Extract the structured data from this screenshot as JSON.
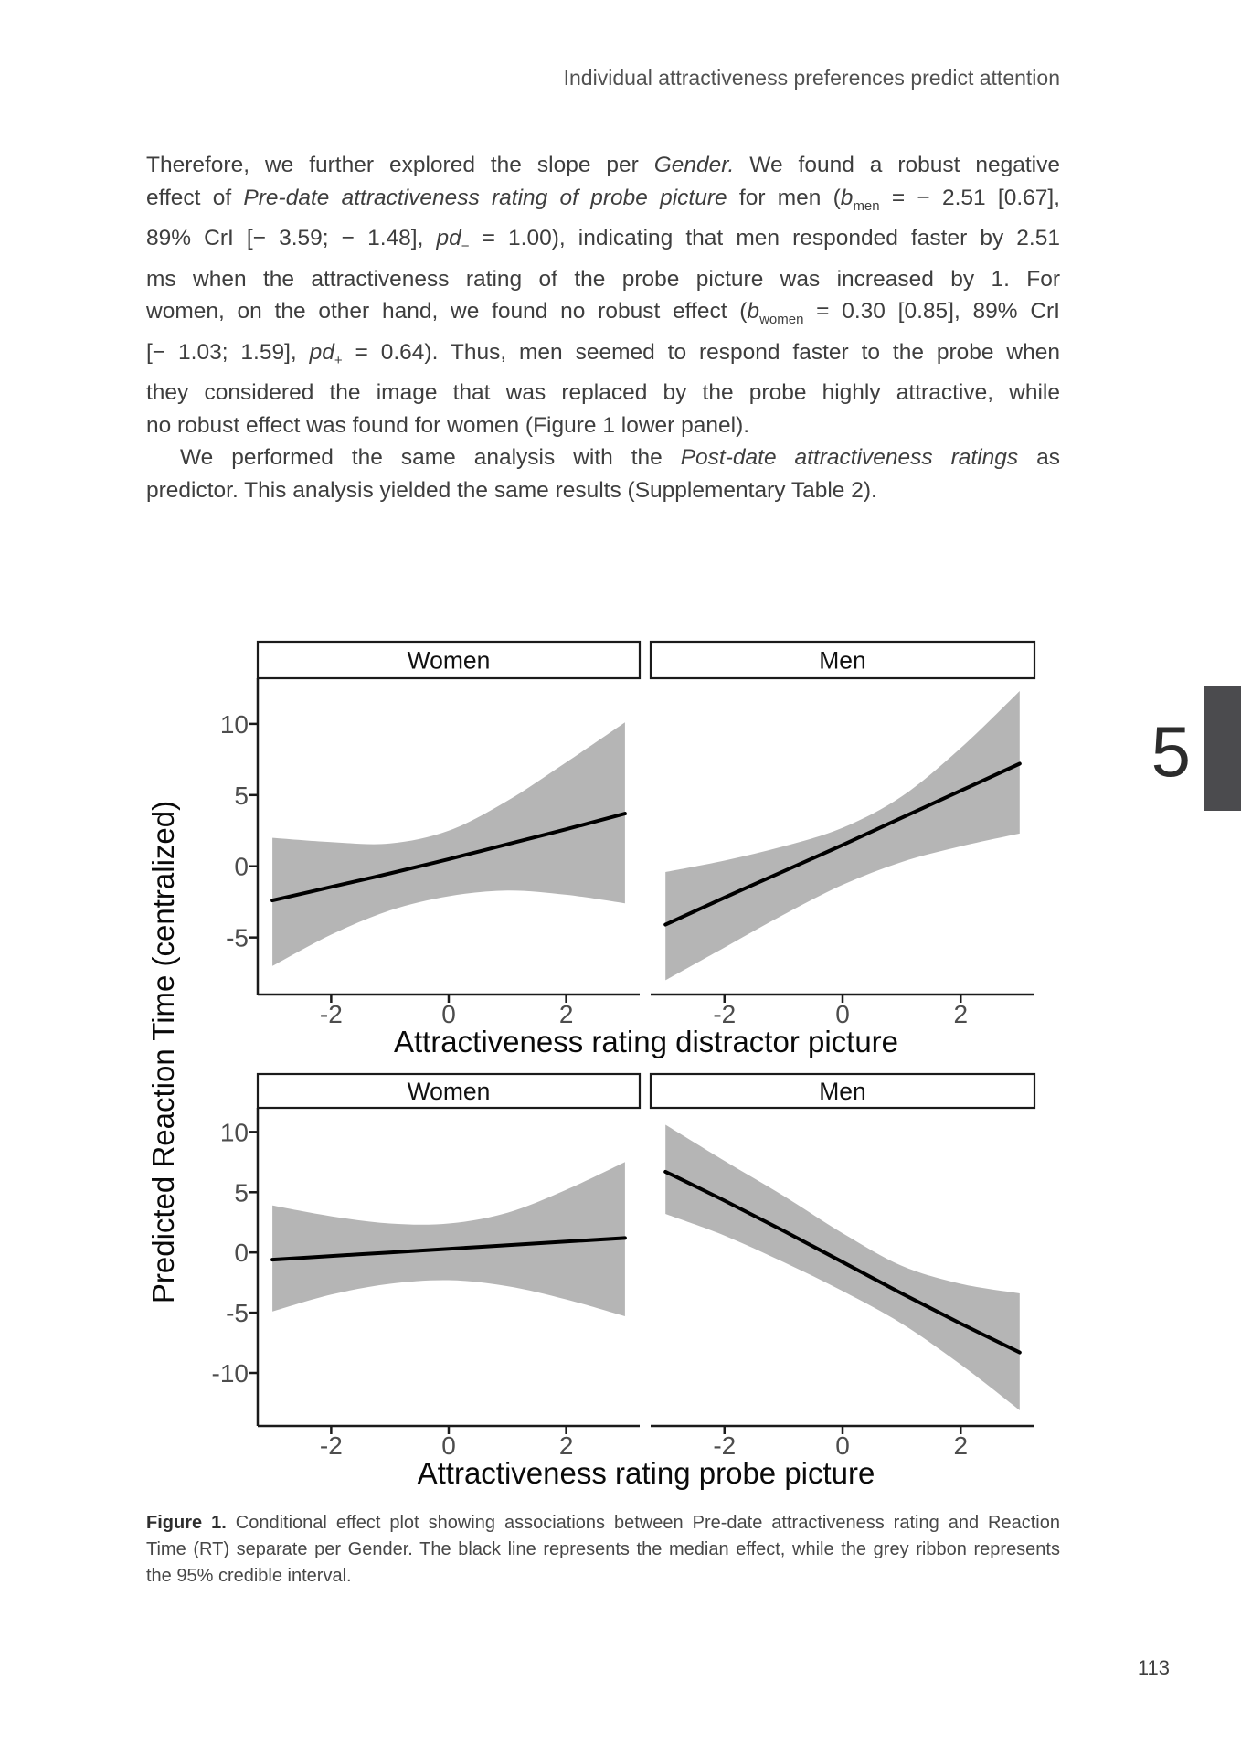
{
  "page": {
    "running_header": "Individual attractiveness preferences predict attention",
    "chapter_number": "5",
    "page_number": "113"
  },
  "paragraphs": [
    {
      "indent_first_line": false,
      "lines": [
        [
          {
            "t": "Therefore, we further explored the slope per "
          },
          {
            "t": "Gender.",
            "s": "i"
          },
          {
            "t": " We found a robust negative"
          }
        ],
        [
          {
            "t": "effect of "
          },
          {
            "t": "Pre-date attractiveness rating of probe picture",
            "s": "i"
          },
          {
            "t": " for men ("
          },
          {
            "t": "b",
            "s": "i"
          },
          {
            "t": "men",
            "s": "sub"
          },
          {
            "t": " = − 2.51 [0.67],"
          }
        ],
        [
          {
            "t": "89% CrI [− 3.59; − 1.48], "
          },
          {
            "t": "pd",
            "s": "i"
          },
          {
            "t": "−",
            "s": "sub"
          },
          {
            "t": " = 1.00), indicating that men responded faster by 2.51"
          }
        ],
        [
          {
            "t": "ms when the attractiveness rating of the probe picture was increased by 1. For"
          }
        ],
        [
          {
            "t": "women, on the other hand, we found no robust effect ("
          },
          {
            "t": "b",
            "s": "i"
          },
          {
            "t": "women",
            "s": "sub"
          },
          {
            "t": " = 0.30 [0.85], 89% CrI"
          }
        ],
        [
          {
            "t": "[− 1.03; 1.59], "
          },
          {
            "t": "pd",
            "s": "i"
          },
          {
            "t": "+",
            "s": "sub"
          },
          {
            "t": " = 0.64). Thus, men seemed to respond faster to the probe when"
          }
        ],
        [
          {
            "t": "they considered the image that was replaced by the probe highly attractive, while"
          }
        ],
        [
          {
            "t": "no robust effect was found for women (Figure 1 lower panel)."
          }
        ]
      ]
    },
    {
      "indent_first_line": true,
      "lines": [
        [
          {
            "t": "We performed the same analysis with the "
          },
          {
            "t": "Post-date attractiveness ratings",
            "s": "i"
          },
          {
            "t": " as"
          }
        ],
        [
          {
            "t": "predictor. This analysis yielded the same results (Supplementary Table 2)."
          }
        ]
      ]
    }
  ],
  "caption": {
    "lines": [
      [
        {
          "t": "Figure 1.",
          "s": "b"
        },
        {
          "t": " Conditional effect plot showing associations between Pre-date attractiveness rating and Reaction"
        }
      ],
      [
        {
          "t": "Time (RT) separate per Gender. The black line represents the median effect, while the grey ribbon represents"
        }
      ],
      [
        {
          "t": "the 95% credible interval."
        }
      ]
    ]
  },
  "chart_data": {
    "type": "line",
    "description": "Conditional effect plots: median effect line with 95% credible interval ribbon, faceted by Gender (columns: Women, Men) and by predictor (rows: distractor picture rating, probe picture rating)",
    "ylabel": "Predicted Reaction Time (centralized)",
    "legend": "none",
    "grid": false,
    "line_color": "#000000",
    "ribbon_color": "#b5b5b5",
    "axis_color": "#1b1b1b",
    "tick_label_color": "#4d4d4d",
    "x": [
      -3,
      -2,
      -1,
      0,
      1,
      2,
      3
    ],
    "rows": [
      {
        "xlabel": "Attractiveness rating distractor picture",
        "x_ticks": [
          "-2",
          "0",
          "2"
        ],
        "x_tick_values": [
          -2,
          0,
          2
        ],
        "y_ticks": [
          "10",
          "5",
          "0",
          "-5"
        ],
        "y_tick_values": [
          10,
          5,
          0,
          -5
        ],
        "ylim": [
          -9,
          13.2
        ],
        "xlim": [
          -3.25,
          3.25
        ],
        "panels": [
          {
            "facet": "Women",
            "median": [
              -2.4,
              -1.45,
              -0.5,
              0.5,
              1.55,
              2.6,
              3.7
            ],
            "upper": [
              2.0,
              1.7,
              1.6,
              2.5,
              4.6,
              7.3,
              10.1
            ],
            "lower": [
              -7.0,
              -4.8,
              -3.1,
              -2.1,
              -1.7,
              -2.0,
              -2.6
            ]
          },
          {
            "facet": "Men",
            "median": [
              -4.1,
              -2.2,
              -0.35,
              1.5,
              3.4,
              5.3,
              7.2
            ],
            "upper": [
              -0.4,
              0.4,
              1.4,
              2.7,
              4.9,
              8.3,
              12.3
            ],
            "lower": [
              -8.0,
              -5.7,
              -3.4,
              -1.3,
              0.3,
              1.4,
              2.3
            ]
          }
        ]
      },
      {
        "xlabel": "Attractiveness rating probe picture",
        "x_ticks": [
          "-2",
          "0",
          "2"
        ],
        "x_tick_values": [
          -2,
          0,
          2
        ],
        "y_ticks": [
          "10",
          "5",
          "0",
          "-5",
          "-10"
        ],
        "y_tick_values": [
          10,
          5,
          0,
          -5,
          -10
        ],
        "ylim": [
          -14.4,
          12.0
        ],
        "xlim": [
          -3.25,
          3.25
        ],
        "panels": [
          {
            "facet": "Women",
            "median": [
              -0.6,
              -0.3,
              0.0,
              0.3,
              0.6,
              0.9,
              1.2
            ],
            "upper": [
              3.9,
              3.0,
              2.4,
              2.4,
              3.3,
              5.2,
              7.5
            ],
            "lower": [
              -4.9,
              -3.5,
              -2.6,
              -2.3,
              -2.8,
              -3.9,
              -5.3
            ]
          },
          {
            "facet": "Men",
            "median": [
              6.7,
              4.3,
              1.8,
              -0.8,
              -3.4,
              -5.9,
              -8.3
            ],
            "upper": [
              10.6,
              7.6,
              4.7,
              1.6,
              -1.1,
              -2.6,
              -3.4
            ],
            "lower": [
              3.2,
              1.4,
              -0.8,
              -3.2,
              -5.9,
              -9.3,
              -13.1
            ]
          }
        ]
      }
    ]
  }
}
